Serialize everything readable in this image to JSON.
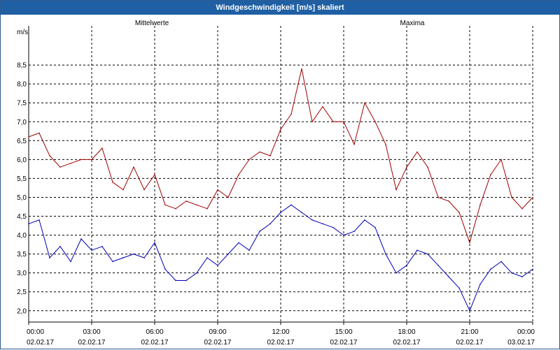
{
  "window": {
    "title": "Windgeschwindigkeit [m/s] skaliert"
  },
  "chart_data": {
    "type": "line",
    "title": "Windgeschwindigkeit [m/s] skaliert",
    "ylabel": "m/s",
    "ylim": [
      1.7,
      9.5
    ],
    "xlim": [
      0,
      24
    ],
    "grid": true,
    "y_ticks": [
      "2,0",
      "2,5",
      "3,0",
      "3,5",
      "4,0",
      "4,5",
      "5,0",
      "5,5",
      "6,0",
      "6,5",
      "7,0",
      "7,5",
      "8,0",
      "8,5"
    ],
    "x_ticks": [
      {
        "time": "00:00",
        "date": "02.02.17"
      },
      {
        "time": "03:00",
        "date": "02.02.17"
      },
      {
        "time": "06:00",
        "date": "02.02.17"
      },
      {
        "time": "09:00",
        "date": "02.02.17"
      },
      {
        "time": "12:00",
        "date": "02.02.17"
      },
      {
        "time": "15:00",
        "date": "02.02.17"
      },
      {
        "time": "18:00",
        "date": "02.02.17"
      },
      {
        "time": "21:00",
        "date": "02.02.17"
      },
      {
        "time": "00:00",
        "date": "03.02.17"
      }
    ],
    "series": [
      {
        "name": "Mittelwerte",
        "color": "#0000b4",
        "x": [
          0,
          0.5,
          1,
          1.5,
          2,
          2.5,
          3,
          3.5,
          4,
          4.5,
          5,
          5.5,
          6,
          6.5,
          7,
          7.5,
          8,
          8.5,
          9,
          9.5,
          10,
          10.5,
          11,
          11.5,
          12,
          12.5,
          13,
          13.5,
          14,
          14.5,
          15,
          15.5,
          16,
          16.5,
          17,
          17.5,
          18,
          18.5,
          19,
          19.5,
          20,
          20.5,
          21,
          21.5,
          22,
          22.5,
          23,
          23.5,
          24
        ],
        "values": [
          4.3,
          4.4,
          3.4,
          3.7,
          3.3,
          3.9,
          3.6,
          3.7,
          3.3,
          3.4,
          3.5,
          3.4,
          3.8,
          3.1,
          2.8,
          2.8,
          3.0,
          3.4,
          3.2,
          3.5,
          3.8,
          3.6,
          4.1,
          4.3,
          4.6,
          4.8,
          4.6,
          4.4,
          4.3,
          4.2,
          4.0,
          4.1,
          4.4,
          4.2,
          3.5,
          3.0,
          3.2,
          3.6,
          3.5,
          3.2,
          2.9,
          2.6,
          2.0,
          2.7,
          3.1,
          3.3,
          3.0,
          2.9,
          3.1
        ]
      },
      {
        "name": "Maxima",
        "color": "#a00000",
        "x": [
          0,
          0.5,
          1,
          1.5,
          2,
          2.5,
          3,
          3.5,
          4,
          4.5,
          5,
          5.5,
          6,
          6.5,
          7,
          7.5,
          8,
          8.5,
          9,
          9.5,
          10,
          10.5,
          11,
          11.5,
          12,
          12.5,
          13,
          13.5,
          14,
          14.5,
          15,
          15.5,
          16,
          16.5,
          17,
          17.5,
          18,
          18.5,
          19,
          19.5,
          20,
          20.5,
          21,
          21.5,
          22,
          22.5,
          23,
          23.5,
          24
        ],
        "values": [
          6.6,
          6.7,
          6.1,
          5.8,
          5.9,
          6.0,
          6.0,
          6.3,
          5.4,
          5.2,
          5.8,
          5.2,
          5.6,
          4.8,
          4.7,
          4.9,
          4.8,
          4.7,
          5.2,
          5.0,
          5.6,
          6.0,
          6.2,
          6.1,
          6.8,
          7.2,
          8.4,
          7.0,
          7.4,
          7.0,
          7.0,
          6.4,
          7.5,
          7.0,
          6.4,
          5.2,
          5.8,
          6.2,
          5.8,
          5.0,
          4.9,
          4.6,
          3.8,
          4.8,
          5.6,
          6.0,
          5.0,
          4.7,
          5.0
        ]
      }
    ]
  }
}
